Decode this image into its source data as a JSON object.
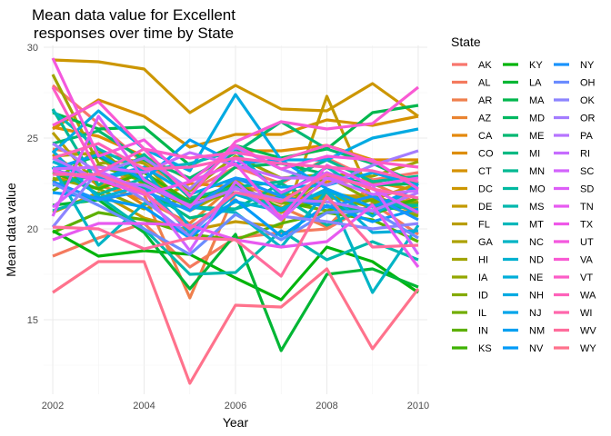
{
  "chart_data": {
    "type": "line",
    "title": "Mean data value for Excellent\nresponses over time by State",
    "xlabel": "Year",
    "ylabel": "Mean data value",
    "x": [
      2002,
      2003,
      2004,
      2005,
      2006,
      2007,
      2008,
      2009,
      2010
    ],
    "xlim": [
      2001.8,
      2010.2
    ],
    "ylim": [
      10.9,
      30.1
    ],
    "xticks": [
      "2002",
      "2004",
      "2006",
      "2008",
      "2010"
    ],
    "yticks": [
      "15",
      "20",
      "25",
      "30"
    ],
    "grid": true,
    "legend_title": "State",
    "legend_position": "right",
    "series": [
      {
        "name": "AK",
        "color": "#F8766D",
        "values": [
          27.9,
          25.8,
          23.6,
          22.1,
          23.4,
          22.5,
          23.9,
          22.7,
          23.1
        ]
      },
      {
        "name": "AL",
        "color": "#F47A5E",
        "values": [
          18.5,
          19.5,
          20.3,
          17.9,
          19.5,
          19.8,
          20.0,
          21.4,
          19.7
        ]
      },
      {
        "name": "AR",
        "color": "#EF7F4C",
        "values": [
          24.4,
          24.0,
          21.9,
          16.2,
          22.0,
          21.2,
          20.1,
          22.5,
          21.4
        ]
      },
      {
        "name": "AZ",
        "color": "#E98432",
        "values": [
          24.1,
          22.4,
          21.6,
          20.3,
          22.5,
          21.7,
          21.7,
          21.9,
          20.8
        ]
      },
      {
        "name": "CA",
        "color": "#E4890D",
        "values": [
          22.7,
          22.9,
          21.3,
          22.5,
          22.3,
          21.0,
          22.6,
          22.6,
          22.1
        ]
      },
      {
        "name": "CO",
        "color": "#DD8D00",
        "values": [
          25.6,
          25.1,
          24.0,
          22.7,
          24.3,
          24.3,
          24.6,
          23.8,
          23.8
        ]
      },
      {
        "name": "CT",
        "color": "#D59100",
        "values": [
          25.5,
          27.1,
          26.2,
          24.5,
          25.2,
          25.2,
          26.0,
          25.7,
          26.2
        ]
      },
      {
        "name": "DC",
        "color": "#CC9600",
        "values": [
          29.3,
          29.2,
          28.8,
          26.4,
          27.9,
          26.6,
          26.5,
          28.0,
          26.2
        ]
      },
      {
        "name": "DE",
        "color": "#C39A00",
        "values": [
          20.9,
          22.0,
          20.6,
          19.9,
          20.4,
          20.1,
          27.3,
          21.6,
          22.5
        ]
      },
      {
        "name": "FL",
        "color": "#B89D00",
        "values": [
          25.3,
          22.3,
          23.2,
          21.0,
          22.7,
          20.9,
          22.0,
          21.6,
          21.5
        ]
      },
      {
        "name": "GA",
        "color": "#ADA100",
        "values": [
          24.0,
          24.2,
          23.6,
          21.0,
          22.3,
          21.4,
          21.7,
          21.6,
          21.1
        ]
      },
      {
        "name": "HI",
        "color": "#A0A400",
        "values": [
          28.5,
          23.6,
          23.8,
          22.1,
          24.0,
          22.8,
          23.0,
          22.9,
          23.7
        ]
      },
      {
        "name": "IA",
        "color": "#93A700",
        "values": [
          22.8,
          22.2,
          21.1,
          21.7,
          21.9,
          21.9,
          21.8,
          21.2,
          21.4
        ]
      },
      {
        "name": "ID",
        "color": "#84AA00",
        "values": [
          22.6,
          24.4,
          22.4,
          21.2,
          22.4,
          21.1,
          22.9,
          21.5,
          20.7
        ]
      },
      {
        "name": "IL",
        "color": "#72AD00",
        "values": [
          22.1,
          23.5,
          22.6,
          21.4,
          22.0,
          21.5,
          21.0,
          21.6,
          21.4
        ]
      },
      {
        "name": "IN",
        "color": "#5DB000",
        "values": [
          19.8,
          20.9,
          20.5,
          19.7,
          19.4,
          20.3,
          20.9,
          20.5,
          19.3
        ]
      },
      {
        "name": "KS",
        "color": "#3EB200",
        "values": [
          23.1,
          22.2,
          23.1,
          21.5,
          22.5,
          21.1,
          21.5,
          20.8,
          21.7
        ]
      },
      {
        "name": "KY",
        "color": "#00B40B",
        "values": [
          19.9,
          18.5,
          18.8,
          18.6,
          17.3,
          16.1,
          19.0,
          18.2,
          16.5
        ]
      },
      {
        "name": "LA",
        "color": "#00B634",
        "values": [
          21.3,
          21.6,
          19.8,
          16.7,
          19.7,
          13.3,
          17.5,
          17.8,
          16.8
        ]
      },
      {
        "name": "MA",
        "color": "#00B74D",
        "values": [
          26.4,
          25.5,
          25.6,
          23.5,
          24.6,
          23.9,
          24.4,
          26.4,
          26.8
        ]
      },
      {
        "name": "MD",
        "color": "#00B861",
        "values": [
          23.3,
          24.0,
          22.6,
          21.5,
          23.4,
          23.6,
          23.0,
          22.4,
          22.5
        ]
      },
      {
        "name": "ME",
        "color": "#00B872",
        "values": [
          24.7,
          25.4,
          23.8,
          22.8,
          24.2,
          25.9,
          24.4,
          23.6,
          22.5
        ]
      },
      {
        "name": "MI",
        "color": "#00B983",
        "values": [
          22.4,
          23.0,
          22.2,
          20.6,
          21.1,
          22.5,
          21.2,
          21.0,
          21.3
        ]
      },
      {
        "name": "MN",
        "color": "#00B992",
        "values": [
          26.6,
          22.4,
          24.1,
          21.7,
          22.3,
          22.6,
          23.8,
          22.6,
          22.9
        ]
      },
      {
        "name": "MO",
        "color": "#00B9A0",
        "values": [
          23.4,
          21.9,
          22.8,
          21.2,
          21.1,
          21.8,
          20.2,
          21.3,
          21.3
        ]
      },
      {
        "name": "MS",
        "color": "#00B8AD",
        "values": [
          21.0,
          21.8,
          20.0,
          17.5,
          17.6,
          19.9,
          18.3,
          19.3,
          18.3
        ]
      },
      {
        "name": "MT",
        "color": "#00B7BA",
        "values": [
          26.5,
          24.4,
          23.2,
          23.6,
          24.3,
          21.8,
          23.4,
          21.8,
          20.9
        ]
      },
      {
        "name": "NC",
        "color": "#00B4C5",
        "values": [
          23.4,
          19.1,
          21.4,
          21.2,
          20.9,
          19.0,
          22.1,
          16.5,
          20.2
        ]
      },
      {
        "name": "ND",
        "color": "#00B1D0",
        "values": [
          23.7,
          22.7,
          23.3,
          20.1,
          21.5,
          21.0,
          22.2,
          20.7,
          22.5
        ]
      },
      {
        "name": "NE",
        "color": "#00AED9",
        "values": [
          24.3,
          21.7,
          22.4,
          19.8,
          21.9,
          21.1,
          22.1,
          19.8,
          19.9
        ]
      },
      {
        "name": "NH",
        "color": "#00AAE2",
        "values": [
          24.2,
          26.5,
          24.4,
          23.2,
          27.4,
          23.8,
          23.8,
          25.0,
          25.5
        ]
      },
      {
        "name": "NJ",
        "color": "#00A5EA",
        "values": [
          23.2,
          22.8,
          23.4,
          21.9,
          22.8,
          22.3,
          22.4,
          23.1,
          22.4
        ]
      },
      {
        "name": "NM",
        "color": "#00A0F1",
        "values": [
          23.3,
          24.1,
          22.7,
          24.9,
          23.6,
          23.8,
          22.2,
          21.2,
          22.3
        ]
      },
      {
        "name": "NV",
        "color": "#009AF8",
        "values": [
          22.0,
          21.7,
          21.2,
          19.5,
          21.6,
          19.6,
          21.3,
          20.4,
          21.1
        ]
      },
      {
        "name": "NY",
        "color": "#1A93FC",
        "values": [
          22.6,
          21.6,
          22.1,
          21.0,
          22.8,
          21.8,
          21.2,
          21.8,
          20.5
        ]
      },
      {
        "name": "OH",
        "color": "#6B8CFF",
        "values": [
          22.5,
          21.3,
          20.0,
          18.6,
          20.8,
          19.4,
          20.9,
          21.0,
          19.5
        ]
      },
      {
        "name": "OK",
        "color": "#8C84FF",
        "values": [
          20.1,
          23.2,
          21.6,
          19.6,
          22.3,
          20.7,
          20.4,
          20.0,
          20.3
        ]
      },
      {
        "name": "OR",
        "color": "#A47CFF",
        "values": [
          24.7,
          23.1,
          23.9,
          22.2,
          24.5,
          23.3,
          22.4,
          23.5,
          24.3
        ]
      },
      {
        "name": "PA",
        "color": "#B674FF",
        "values": [
          23.9,
          22.7,
          22.4,
          21.3,
          22.2,
          21.6,
          21.5,
          21.0,
          22.0
        ]
      },
      {
        "name": "RI",
        "color": "#C66CFF",
        "values": [
          23.3,
          23.4,
          23.1,
          24.2,
          23.5,
          22.8,
          22.8,
          21.9,
          22.1
        ]
      },
      {
        "name": "SC",
        "color": "#D264FC",
        "values": [
          21.2,
          23.2,
          22.1,
          18.8,
          22.6,
          20.5,
          22.8,
          22.4,
          18.6
        ]
      },
      {
        "name": "SD",
        "color": "#DD5EF7",
        "values": [
          20.7,
          26.2,
          22.7,
          21.2,
          23.9,
          22.0,
          23.1,
          22.2,
          20.9
        ]
      },
      {
        "name": "TN",
        "color": "#E75AF0",
        "values": [
          19.4,
          20.3,
          20.3,
          20.2,
          19.4,
          19.0,
          19.3,
          21.3,
          17.9
        ]
      },
      {
        "name": "TX",
        "color": "#EF58E8",
        "values": [
          23.2,
          22.7,
          21.9,
          22.6,
          23.6,
          20.6,
          23.5,
          22.4,
          22.8
        ]
      },
      {
        "name": "UT",
        "color": "#F458DE",
        "values": [
          29.4,
          24.0,
          24.9,
          22.6,
          24.6,
          23.3,
          24.0,
          23.8,
          22.2
        ]
      },
      {
        "name": "VA",
        "color": "#F95AD3",
        "values": [
          25.7,
          27.0,
          24.4,
          21.8,
          24.8,
          25.9,
          25.5,
          25.8,
          27.8
        ]
      },
      {
        "name": "VT",
        "color": "#FC5DC7",
        "values": [
          27.8,
          23.1,
          24.4,
          23.9,
          24.2,
          23.8,
          24.6,
          23.7,
          23.4
        ]
      },
      {
        "name": "WA",
        "color": "#FE62BA",
        "values": [
          23.9,
          24.7,
          23.3,
          23.4,
          23.9,
          23.6,
          23.4,
          23.2,
          22.6
        ]
      },
      {
        "name": "WI",
        "color": "#FF67AC",
        "values": [
          23.0,
          23.0,
          22.0,
          20.0,
          22.0,
          21.5,
          23.0,
          22.2,
          21.7
        ]
      },
      {
        "name": "WV",
        "color": "#FF6C9C",
        "values": [
          20.1,
          20.0,
          18.9,
          19.5,
          19.4,
          17.4,
          21.8,
          19.0,
          19.1
        ]
      },
      {
        "name": "WY",
        "color": "#FF728C",
        "values": [
          16.5,
          18.2,
          18.2,
          11.5,
          15.8,
          15.7,
          17.8,
          13.4,
          16.7
        ]
      }
    ]
  }
}
